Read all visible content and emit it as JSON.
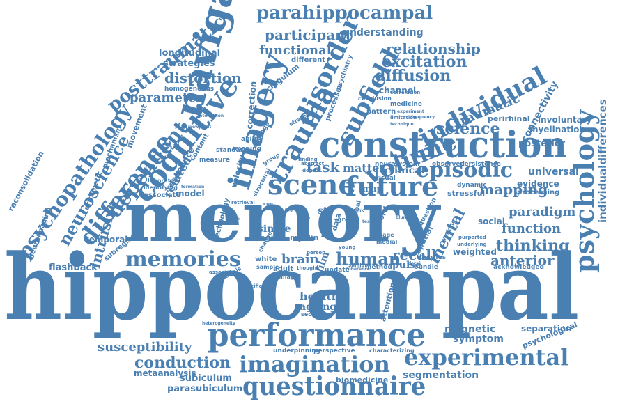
{
  "title": "",
  "palette": {
    "word_color": "#4a7fb2",
    "background": "#ffffff"
  },
  "words": [
    "hippocampal",
    "memory",
    "construction",
    "performance",
    "imagination",
    "questionnaire",
    "navigation",
    "imagery",
    "trauma",
    "disorder",
    "subfield",
    "volume",
    "individual",
    "cognitive",
    "difference",
    "dependent",
    "scene",
    "future",
    "episodic",
    "psychology",
    "psychopathology",
    "neuroscience",
    "posttraumatic",
    "parahippocampal",
    "participant",
    "understanding",
    "functional",
    "relationship",
    "excitation",
    "diffusion",
    "experimental",
    "memories",
    "distortion",
    "parameter",
    "longitudinal",
    "strategies",
    "intrusive",
    "conduction",
    "susceptibility",
    "subiculum",
    "parasubiculum",
    "metaanalysis",
    "segmentation",
    "biomedicine",
    "anterior",
    "thinking",
    "function",
    "paradigm",
    "mapping",
    "universal",
    "posterior",
    "connectivity",
    "involuntary",
    "myelination",
    "individualdifferences",
    "traumatic",
    "perirhinal",
    "science",
    "task",
    "matter",
    "clinical",
    "human",
    "brain",
    "recall",
    "pulse",
    "magnetic",
    "symptom",
    "separation",
    "psychological",
    "healthy",
    "ageing",
    "mental",
    "flashback",
    "temporal",
    "subregion",
    "reconsolidation",
    "neuroimaging",
    "arithmetic",
    "mechanism",
    "movement",
    "resonance",
    "related",
    "model",
    "white",
    "adult",
    "channel",
    "cingulum",
    "correction",
    "different",
    "homogeneous",
    "evidence",
    "processing",
    "social",
    "weighted",
    "acknowledged",
    "stressful",
    "dynamic",
    "observed",
    "persistence",
    "neural",
    "system",
    "visual",
    "grey",
    "verbal",
    "spatial",
    "question",
    "single",
    "region",
    "technology",
    "velocity",
    "imaging",
    "average",
    "ability",
    "content",
    "measure",
    "standard",
    "structural",
    "associate",
    "identifying",
    "laboratory",
    "attentional",
    "underpinning",
    "perspective",
    "characterizing",
    "update",
    "method",
    "bundle",
    "theories",
    "sample",
    "damage",
    "thought",
    "associated",
    "analysis",
    "specific",
    "secondary",
    "pattern",
    "conclusion",
    "medicine",
    "psychiatry",
    "processes",
    "strategy",
    "finding",
    "retrieval",
    "change",
    "myelin",
    "ratio",
    "data",
    "word",
    "image",
    "medial",
    "film",
    "person",
    "young",
    "similar",
    "coherence",
    "blurring",
    "working",
    "limitation",
    "correlation",
    "technique",
    "frequency",
    "underlying",
    "purported",
    "heterogeneity",
    "interaction",
    "formation",
    "viewpoint",
    "detail",
    "experiment",
    "group",
    "abstract",
    "depth",
    "map",
    "str",
    "cue",
    "dev",
    "time",
    "link",
    "rate",
    "test"
  ]
}
